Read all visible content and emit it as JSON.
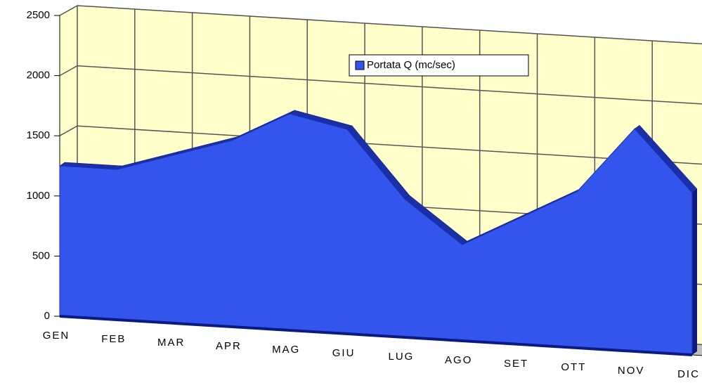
{
  "chart_data": {
    "type": "area3d",
    "categories": [
      "GEN",
      "FEB",
      "MAR",
      "APR",
      "MAG",
      "GIU",
      "LUG",
      "AGO",
      "SET",
      "OTT",
      "NOV",
      "DIC"
    ],
    "series": [
      {
        "name": "Portata Q (mc/sec)",
        "color": "#3355ee",
        "values": [
          1250,
          1250,
          1400,
          1550,
          1800,
          1700,
          1150,
          800,
          1050,
          1300,
          1850,
          1350
        ]
      }
    ],
    "ylim": [
      0,
      2500
    ],
    "yticks": [
      0,
      500,
      1000,
      1500,
      2000,
      2500
    ],
    "grid": true,
    "legend": "top"
  }
}
